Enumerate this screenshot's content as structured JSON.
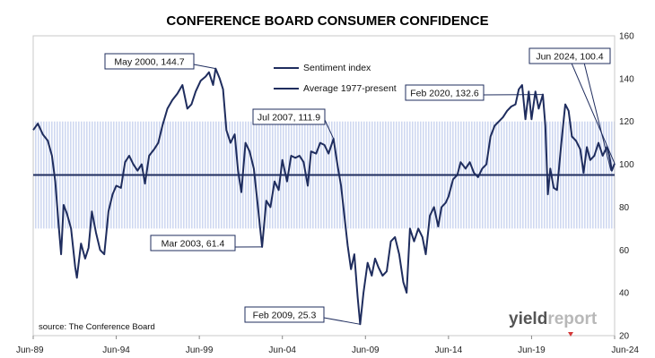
{
  "chart_data": {
    "type": "line",
    "title": "CONFERENCE BOARD CONSUMER CONFIDENCE",
    "source": "source: The Conference Board",
    "xlabel": "",
    "ylabel": "",
    "x_start": 1989.42,
    "x_end": 2024.42,
    "xticks": [
      {
        "x": 1989.42,
        "label": "Jun-89"
      },
      {
        "x": 1994.42,
        "label": "Jun-94"
      },
      {
        "x": 1999.42,
        "label": "Jun-99"
      },
      {
        "x": 2004.42,
        "label": "Jun-04"
      },
      {
        "x": 2009.42,
        "label": "Jun-09"
      },
      {
        "x": 2014.42,
        "label": "Jun-14"
      },
      {
        "x": 2019.42,
        "label": "Jun-19"
      },
      {
        "x": 2024.42,
        "label": "Jun-24"
      }
    ],
    "ylim": [
      20,
      160
    ],
    "yticks": [
      20,
      40,
      60,
      80,
      100,
      120,
      140,
      160
    ],
    "y_axis_side": "right",
    "shaded_band": [
      70,
      120
    ],
    "grid": false,
    "legend_position": "top-center",
    "series": [
      {
        "name": "Sentiment index",
        "color": "#1f2d5e",
        "points": [
          [
            1989.42,
            116
          ],
          [
            1989.7,
            119
          ],
          [
            1990.0,
            114
          ],
          [
            1990.3,
            111
          ],
          [
            1990.55,
            104
          ],
          [
            1990.75,
            92
          ],
          [
            1990.95,
            72
          ],
          [
            1991.1,
            58
          ],
          [
            1991.25,
            81
          ],
          [
            1991.45,
            77
          ],
          [
            1991.7,
            70
          ],
          [
            1991.95,
            52
          ],
          [
            1992.05,
            47
          ],
          [
            1992.3,
            63
          ],
          [
            1992.55,
            56
          ],
          [
            1992.75,
            61
          ],
          [
            1992.95,
            78
          ],
          [
            1993.2,
            68
          ],
          [
            1993.45,
            60
          ],
          [
            1993.7,
            58
          ],
          [
            1993.95,
            78
          ],
          [
            1994.2,
            86
          ],
          [
            1994.42,
            90
          ],
          [
            1994.7,
            89
          ],
          [
            1994.95,
            101
          ],
          [
            1995.2,
            104
          ],
          [
            1995.45,
            100
          ],
          [
            1995.7,
            97
          ],
          [
            1995.95,
            100
          ],
          [
            1996.15,
            91
          ],
          [
            1996.4,
            104
          ],
          [
            1996.7,
            107
          ],
          [
            1996.95,
            110
          ],
          [
            1997.2,
            118
          ],
          [
            1997.5,
            126
          ],
          [
            1997.8,
            130
          ],
          [
            1998.1,
            133
          ],
          [
            1998.4,
            137
          ],
          [
            1998.7,
            126
          ],
          [
            1998.95,
            128
          ],
          [
            1999.2,
            134
          ],
          [
            1999.5,
            139
          ],
          [
            1999.8,
            141
          ],
          [
            2000.0,
            143
          ],
          [
            2000.25,
            137
          ],
          [
            2000.4,
            144.7
          ],
          [
            2000.65,
            140
          ],
          [
            2000.85,
            135
          ],
          [
            2001.05,
            116
          ],
          [
            2001.3,
            110
          ],
          [
            2001.55,
            114
          ],
          [
            2001.75,
            97
          ],
          [
            2001.95,
            87
          ],
          [
            2002.2,
            110
          ],
          [
            2002.45,
            106
          ],
          [
            2002.7,
            98
          ],
          [
            2002.95,
            80
          ],
          [
            2003.2,
            61.4
          ],
          [
            2003.45,
            83
          ],
          [
            2003.7,
            80
          ],
          [
            2003.95,
            92
          ],
          [
            2004.2,
            88
          ],
          [
            2004.42,
            102
          ],
          [
            2004.7,
            92
          ],
          [
            2004.95,
            104
          ],
          [
            2005.2,
            103
          ],
          [
            2005.45,
            104
          ],
          [
            2005.7,
            101
          ],
          [
            2005.95,
            90
          ],
          [
            2006.15,
            106
          ],
          [
            2006.45,
            105
          ],
          [
            2006.7,
            110
          ],
          [
            2006.95,
            109
          ],
          [
            2007.2,
            105
          ],
          [
            2007.5,
            111.9
          ],
          [
            2007.75,
            99
          ],
          [
            2007.95,
            90
          ],
          [
            2008.15,
            76
          ],
          [
            2008.35,
            62
          ],
          [
            2008.55,
            51
          ],
          [
            2008.75,
            58
          ],
          [
            2008.95,
            38
          ],
          [
            2009.1,
            25.3
          ],
          [
            2009.3,
            40
          ],
          [
            2009.55,
            54
          ],
          [
            2009.8,
            48
          ],
          [
            2010.0,
            56
          ],
          [
            2010.2,
            52
          ],
          [
            2010.45,
            48
          ],
          [
            2010.7,
            50
          ],
          [
            2010.95,
            64
          ],
          [
            2011.2,
            66
          ],
          [
            2011.45,
            58
          ],
          [
            2011.7,
            45
          ],
          [
            2011.9,
            40
          ],
          [
            2012.1,
            70
          ],
          [
            2012.35,
            64
          ],
          [
            2012.6,
            70
          ],
          [
            2012.85,
            66
          ],
          [
            2013.05,
            58
          ],
          [
            2013.3,
            76
          ],
          [
            2013.55,
            80
          ],
          [
            2013.8,
            71
          ],
          [
            2014.0,
            80
          ],
          [
            2014.25,
            82
          ],
          [
            2014.42,
            85
          ],
          [
            2014.7,
            93
          ],
          [
            2014.95,
            95
          ],
          [
            2015.15,
            101
          ],
          [
            2015.45,
            98
          ],
          [
            2015.7,
            101
          ],
          [
            2015.95,
            96
          ],
          [
            2016.2,
            94
          ],
          [
            2016.45,
            98
          ],
          [
            2016.7,
            100
          ],
          [
            2016.95,
            113
          ],
          [
            2017.2,
            118
          ],
          [
            2017.45,
            120
          ],
          [
            2017.7,
            122
          ],
          [
            2017.95,
            125
          ],
          [
            2018.2,
            127
          ],
          [
            2018.45,
            128
          ],
          [
            2018.65,
            135
          ],
          [
            2018.85,
            137
          ],
          [
            2019.05,
            121
          ],
          [
            2019.25,
            134
          ],
          [
            2019.42,
            121
          ],
          [
            2019.65,
            134
          ],
          [
            2019.85,
            126
          ],
          [
            2020.1,
            132.6
          ],
          [
            2020.25,
            118
          ],
          [
            2020.4,
            86
          ],
          [
            2020.55,
            98
          ],
          [
            2020.75,
            89
          ],
          [
            2020.95,
            88
          ],
          [
            2021.2,
            109
          ],
          [
            2021.45,
            128
          ],
          [
            2021.65,
            125
          ],
          [
            2021.85,
            113
          ],
          [
            2022.1,
            111
          ],
          [
            2022.35,
            107
          ],
          [
            2022.55,
            96
          ],
          [
            2022.75,
            108
          ],
          [
            2022.95,
            102
          ],
          [
            2023.2,
            104
          ],
          [
            2023.45,
            110
          ],
          [
            2023.7,
            104
          ],
          [
            2023.95,
            108
          ],
          [
            2024.1,
            104
          ],
          [
            2024.25,
            97
          ],
          [
            2024.42,
            100.4
          ]
        ]
      },
      {
        "name": "Average 1977-present",
        "color": "#1f2d5e",
        "points": [
          [
            1989.42,
            95
          ],
          [
            2024.42,
            95
          ]
        ]
      }
    ],
    "annotations": [
      {
        "text": "May 2000, 144.7",
        "x": 2000.4,
        "y": 144.7
      },
      {
        "text": "Mar 2003, 61.4",
        "x": 2003.2,
        "y": 61.4
      },
      {
        "text": "Jul 2007, 111.9",
        "x": 2007.5,
        "y": 111.9
      },
      {
        "text": "Feb 2009, 25.3",
        "x": 2009.1,
        "y": 25.3
      },
      {
        "text": "Feb 2020, 132.6",
        "x": 2020.1,
        "y": 132.6
      },
      {
        "text": "Jun 2024, 100.4",
        "x": 2024.42,
        "y": 100.4
      }
    ]
  },
  "logo": {
    "part1": "yield",
    "part2": "report"
  },
  "colors": {
    "line": "#1f2d5e",
    "band": "#cfd8f1",
    "frame": "#c9c9c9"
  }
}
